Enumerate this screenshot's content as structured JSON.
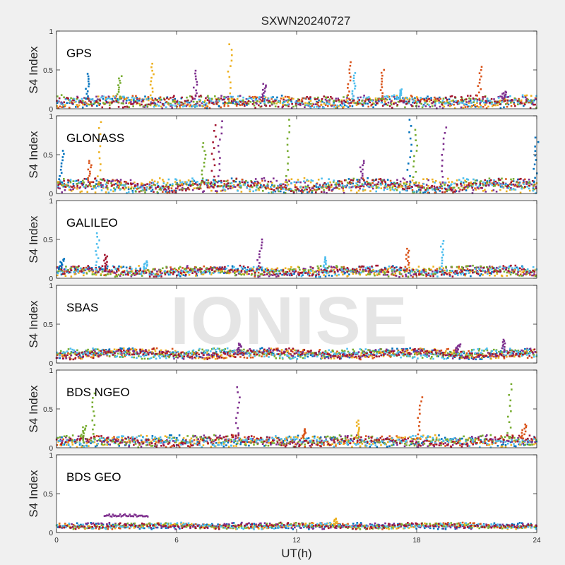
{
  "title": "SXWN20240727",
  "watermark": "IONISE",
  "colors": {
    "background": "#f0f0f0",
    "axes_bg": "#ffffff",
    "series": [
      "#0072bd",
      "#d95319",
      "#edb120",
      "#7e2f8e",
      "#77ac30",
      "#4dbeee",
      "#a2142f"
    ]
  },
  "chart_data": [
    {
      "type": "scatter",
      "panel_label": "GPS",
      "ylabel": "S4 Index",
      "xlim": [
        0,
        24
      ],
      "ylim": [
        0,
        1
      ],
      "xticks": [
        0,
        6,
        12,
        18,
        24
      ],
      "yticks": [
        0,
        0.5,
        1
      ],
      "grid": false,
      "baseline_band": [
        0.02,
        0.16
      ],
      "points_per_series": 180,
      "spikes": [
        {
          "x": 1.5,
          "peak": 0.45,
          "series": 0
        },
        {
          "x": 3.1,
          "peak": 0.42,
          "series": 4
        },
        {
          "x": 4.7,
          "peak": 0.58,
          "series": 2
        },
        {
          "x": 6.9,
          "peak": 0.49,
          "series": 3
        },
        {
          "x": 8.6,
          "peak": 0.83,
          "series": 2
        },
        {
          "x": 10.3,
          "peak": 0.32,
          "series": 3
        },
        {
          "x": 14.6,
          "peak": 0.6,
          "series": 1
        },
        {
          "x": 14.8,
          "peak": 0.46,
          "series": 5
        },
        {
          "x": 16.2,
          "peak": 0.5,
          "series": 1
        },
        {
          "x": 17.1,
          "peak": 0.25,
          "series": 5
        },
        {
          "x": 21.1,
          "peak": 0.54,
          "series": 1
        },
        {
          "x": 22.3,
          "peak": 0.22,
          "series": 3
        }
      ]
    },
    {
      "type": "scatter",
      "panel_label": "GLONASS",
      "ylabel": "S4 Index",
      "xlim": [
        0,
        24
      ],
      "ylim": [
        0,
        1
      ],
      "xticks": [
        0,
        6,
        12,
        18,
        24
      ],
      "yticks": [
        0,
        0.5,
        1
      ],
      "grid": false,
      "baseline_band": [
        0.02,
        0.18
      ],
      "points_per_series": 180,
      "spikes": [
        {
          "x": 0.2,
          "peak": 0.55,
          "series": 0
        },
        {
          "x": 1.6,
          "peak": 0.42,
          "series": 1
        },
        {
          "x": 2.1,
          "peak": 0.92,
          "series": 2
        },
        {
          "x": 7.3,
          "peak": 0.65,
          "series": 4
        },
        {
          "x": 7.8,
          "peak": 0.88,
          "series": 6
        },
        {
          "x": 8.1,
          "peak": 0.93,
          "series": 3
        },
        {
          "x": 11.5,
          "peak": 0.95,
          "series": 4
        },
        {
          "x": 15.2,
          "peak": 0.42,
          "series": 3
        },
        {
          "x": 17.6,
          "peak": 0.95,
          "series": 0
        },
        {
          "x": 17.9,
          "peak": 0.82,
          "series": 4
        },
        {
          "x": 19.3,
          "peak": 0.85,
          "series": 3
        },
        {
          "x": 23.9,
          "peak": 0.72,
          "series": 0
        }
      ]
    },
    {
      "type": "scatter",
      "panel_label": "GALILEO",
      "ylabel": "S4 Index",
      "xlim": [
        0,
        24
      ],
      "ylim": [
        0,
        1
      ],
      "xticks": [
        0,
        6,
        12,
        18,
        24
      ],
      "yticks": [
        0,
        0.5,
        1
      ],
      "grid": false,
      "baseline_band": [
        0.03,
        0.15
      ],
      "points_per_series": 180,
      "spikes": [
        {
          "x": 0.2,
          "peak": 0.25,
          "series": 0
        },
        {
          "x": 2.0,
          "peak": 0.58,
          "series": 5
        },
        {
          "x": 2.4,
          "peak": 0.3,
          "series": 6
        },
        {
          "x": 4.4,
          "peak": 0.22,
          "series": 5
        },
        {
          "x": 10.1,
          "peak": 0.5,
          "series": 3
        },
        {
          "x": 13.4,
          "peak": 0.27,
          "series": 5
        },
        {
          "x": 17.5,
          "peak": 0.38,
          "series": 1
        },
        {
          "x": 19.2,
          "peak": 0.48,
          "series": 5
        }
      ]
    },
    {
      "type": "scatter",
      "panel_label": "SBAS",
      "ylabel": "S4 Index",
      "xlim": [
        0,
        24
      ],
      "ylim": [
        0,
        1
      ],
      "xticks": [
        0,
        6,
        12,
        18,
        24
      ],
      "yticks": [
        0,
        0.5,
        1
      ],
      "grid": false,
      "baseline_band": [
        0.06,
        0.18
      ],
      "points_per_series": 200,
      "spikes": [
        {
          "x": 9.1,
          "peak": 0.25,
          "series": 3
        },
        {
          "x": 20.0,
          "peak": 0.24,
          "series": 3
        },
        {
          "x": 22.3,
          "peak": 0.3,
          "series": 3
        }
      ]
    },
    {
      "type": "scatter",
      "panel_label": "BDS NGEO",
      "ylabel": "S4 Index",
      "xlim": [
        0,
        24
      ],
      "ylim": [
        0,
        1
      ],
      "xticks": [
        0,
        6,
        12,
        18,
        24
      ],
      "yticks": [
        0,
        0.5,
        1
      ],
      "grid": false,
      "baseline_band": [
        0.02,
        0.15
      ],
      "points_per_series": 180,
      "spikes": [
        {
          "x": 1.3,
          "peak": 0.28,
          "series": 4
        },
        {
          "x": 1.8,
          "peak": 0.7,
          "series": 4
        },
        {
          "x": 9.0,
          "peak": 0.78,
          "series": 3
        },
        {
          "x": 12.3,
          "peak": 0.24,
          "series": 1
        },
        {
          "x": 15.0,
          "peak": 0.35,
          "series": 2
        },
        {
          "x": 18.1,
          "peak": 0.65,
          "series": 1
        },
        {
          "x": 22.6,
          "peak": 0.82,
          "series": 4
        },
        {
          "x": 23.3,
          "peak": 0.3,
          "series": 1
        }
      ]
    },
    {
      "type": "scatter",
      "panel_label": "BDS GEO",
      "ylabel": "S4 Index",
      "xlabel": "UT(h)",
      "xlim": [
        0,
        24
      ],
      "ylim": [
        0,
        1
      ],
      "xticks": [
        0,
        6,
        12,
        18,
        24
      ],
      "yticks": [
        0,
        0.5,
        1
      ],
      "grid": false,
      "baseline_band": [
        0.05,
        0.12
      ],
      "points_per_series": 160,
      "segments": [
        {
          "x0": 2.4,
          "x1": 4.6,
          "y": 0.22,
          "series": 3
        }
      ],
      "spikes": [
        {
          "x": 13.9,
          "peak": 0.18,
          "series": 2
        }
      ]
    }
  ]
}
